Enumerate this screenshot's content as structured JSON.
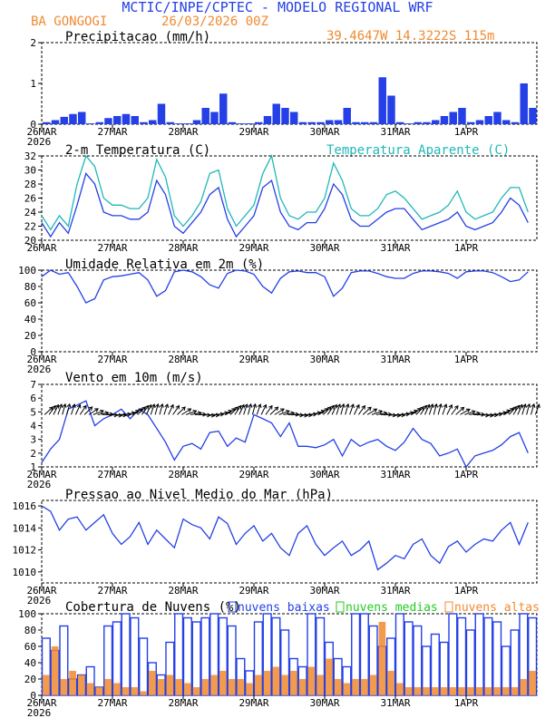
{
  "header": {
    "title": "MCTIC/INPE/CPTEC - MODELO REGIONAL WRF",
    "location": "BA GONGOGI",
    "run": "26/03/2026 00Z",
    "coords": "39.4647W 14.3222S 115m"
  },
  "colors": {
    "blue": "#2440e6",
    "orange": "#f08a30",
    "cyan": "#20b8b8",
    "green": "#22cc22",
    "black": "#000000"
  },
  "x_axis": {
    "labels": [
      "26MAR",
      "27MAR",
      "28MAR",
      "29MAR",
      "30MAR",
      "31MAR",
      "1APR"
    ],
    "year": "2026"
  },
  "chart_data": [
    {
      "id": "precip",
      "type": "bar",
      "title": "Precipitacao (mm/h)",
      "ylim": [
        0,
        2
      ],
      "yticks": [
        "0",
        "1",
        "2"
      ],
      "x_unit": "hours since 26MAR 00Z (3-hourly)",
      "x": [
        0,
        3,
        6,
        9,
        12,
        15,
        18,
        21,
        24,
        27,
        30,
        33,
        36,
        39,
        42,
        45,
        48,
        51,
        54,
        57,
        60,
        63,
        66,
        69,
        72,
        75,
        78,
        81,
        84,
        87,
        90,
        93,
        96,
        99,
        102,
        105,
        108,
        111,
        114,
        117,
        120,
        123,
        126,
        129,
        132,
        135,
        138,
        141,
        144,
        147,
        150,
        153,
        156,
        159,
        162,
        165
      ],
      "series": [
        {
          "name": "Precipitacao",
          "color": "blue",
          "values": [
            0.05,
            0.1,
            0.18,
            0.25,
            0.3,
            0.02,
            0.05,
            0.15,
            0.2,
            0.25,
            0.2,
            0.05,
            0.1,
            0.5,
            0.05,
            0.02,
            0.02,
            0.1,
            0.4,
            0.3,
            0.75,
            0.05,
            0.02,
            0.02,
            0.05,
            0.2,
            0.5,
            0.4,
            0.3,
            0.05,
            0.05,
            0.05,
            0.1,
            0.1,
            0.4,
            0.05,
            0.05,
            0.05,
            1.15,
            0.7,
            0.05,
            0.02,
            0.05,
            0.05,
            0.1,
            0.2,
            0.3,
            0.4,
            0.05,
            0.1,
            0.2,
            0.3,
            0.1,
            0.05,
            1.0,
            0.4
          ]
        }
      ]
    },
    {
      "id": "temp",
      "type": "line",
      "title": "2-m Temperatura (C)",
      "title2": "Temperatura Aparente (C)",
      "ylim": [
        20,
        32
      ],
      "yticks": [
        "20",
        "22",
        "24",
        "26",
        "28",
        "30",
        "32"
      ],
      "x": [
        0,
        3,
        6,
        9,
        12,
        15,
        18,
        21,
        24,
        27,
        30,
        33,
        36,
        39,
        42,
        45,
        48,
        51,
        54,
        57,
        60,
        63,
        66,
        69,
        72,
        75,
        78,
        81,
        84,
        87,
        90,
        93,
        96,
        99,
        102,
        105,
        108,
        111,
        114,
        117,
        120,
        123,
        126,
        129,
        132,
        135,
        138,
        141,
        144,
        147,
        150,
        153,
        156,
        159,
        162,
        165
      ],
      "series": [
        {
          "name": "2-m Temperatura",
          "color": "blue",
          "values": [
            22.5,
            20.5,
            22.5,
            21,
            25,
            29.5,
            28,
            24,
            23.5,
            23.5,
            23,
            23,
            24,
            28.5,
            26.5,
            22,
            21,
            22.5,
            24,
            26.5,
            27.5,
            23,
            20.5,
            22,
            23.5,
            27.5,
            28.5,
            24,
            22,
            21.5,
            22.5,
            22.5,
            24.5,
            28,
            26.5,
            23,
            22,
            22,
            23,
            24,
            24.5,
            24.5,
            23,
            21.5,
            22,
            22.5,
            23,
            24,
            22,
            21.5,
            22,
            22.5,
            24,
            26,
            25,
            22.5
          ]
        },
        {
          "name": "Temperatura Aparente",
          "color": "cyan",
          "values": [
            23.5,
            21.5,
            23.5,
            22,
            28,
            32,
            30.5,
            26,
            25,
            25,
            24.5,
            24.5,
            26,
            31.5,
            29,
            23.5,
            22,
            23.5,
            25.5,
            29.5,
            30,
            24.5,
            22,
            23.5,
            25,
            29.5,
            32,
            26,
            23.5,
            23,
            24,
            24,
            26,
            31,
            28.5,
            24.5,
            23.5,
            23.5,
            24.5,
            26.5,
            27,
            26,
            24.5,
            23,
            23.5,
            24,
            25,
            27,
            24,
            23,
            23.5,
            24,
            26,
            27.5,
            27.5,
            24
          ]
        }
      ]
    },
    {
      "id": "rh",
      "type": "line",
      "title": "Umidade Relativa em 2m (%)",
      "ylim": [
        0,
        100
      ],
      "yticks": [
        "0",
        "20",
        "40",
        "60",
        "80",
        "100"
      ],
      "x": [
        0,
        3,
        6,
        9,
        12,
        15,
        18,
        21,
        24,
        27,
        30,
        33,
        36,
        39,
        42,
        45,
        48,
        51,
        54,
        57,
        60,
        63,
        66,
        69,
        72,
        75,
        78,
        81,
        84,
        87,
        90,
        93,
        96,
        99,
        102,
        105,
        108,
        111,
        114,
        117,
        120,
        123,
        126,
        129,
        132,
        135,
        138,
        141,
        144,
        147,
        150,
        153,
        156,
        159,
        162,
        165
      ],
      "series": [
        {
          "name": "Umidade Relativa",
          "color": "blue",
          "values": [
            92,
            100,
            95,
            97,
            80,
            60,
            65,
            88,
            92,
            93,
            95,
            97,
            88,
            68,
            75,
            98,
            100,
            98,
            92,
            82,
            78,
            96,
            100,
            99,
            95,
            80,
            72,
            90,
            98,
            99,
            97,
            97,
            92,
            68,
            78,
            97,
            99,
            99,
            96,
            92,
            90,
            90,
            96,
            99,
            99,
            98,
            96,
            90,
            98,
            99,
            99,
            97,
            92,
            86,
            88,
            98
          ]
        }
      ]
    },
    {
      "id": "wind",
      "type": "line",
      "title": "Vento em 10m (m/s)",
      "ylim": [
        1,
        7
      ],
      "yticks": [
        "1",
        "2",
        "3",
        "4",
        "5",
        "6",
        "7"
      ],
      "x": [
        0,
        3,
        6,
        9,
        12,
        15,
        18,
        21,
        24,
        27,
        30,
        33,
        36,
        39,
        42,
        45,
        48,
        51,
        54,
        57,
        60,
        63,
        66,
        69,
        72,
        75,
        78,
        81,
        84,
        87,
        90,
        93,
        96,
        99,
        102,
        105,
        108,
        111,
        114,
        117,
        120,
        123,
        126,
        129,
        132,
        135,
        138,
        141,
        144,
        147,
        150,
        153,
        156,
        159,
        162,
        165
      ],
      "series": [
        {
          "name": "Vento em 10m",
          "color": "blue",
          "values": [
            1.3,
            2.3,
            3,
            5.2,
            5.5,
            5.8,
            4,
            4.5,
            4.8,
            5.2,
            4.5,
            5.2,
            4.8,
            3.8,
            2.8,
            1.5,
            2.5,
            2.7,
            2.3,
            3.5,
            3.6,
            2.5,
            3.1,
            2.8,
            4.8,
            4.5,
            4.2,
            3.2,
            4.2,
            2.5,
            2.5,
            2.4,
            2.6,
            3,
            1.8,
            3,
            2.5,
            2.8,
            3,
            2.5,
            2.2,
            2.8,
            3.8,
            3,
            2.7,
            1.8,
            2,
            2.3,
            1,
            1.8,
            2,
            2.2,
            2.6,
            3.2,
            3.5,
            2.0
          ]
        }
      ],
      "vectors": {
        "baseline": 4.8,
        "interval_hours": 3
      }
    },
    {
      "id": "pressure",
      "type": "line",
      "title": "Pressao ao Nivel Medio do Mar (hPa)",
      "ylim": [
        1009,
        1016.5
      ],
      "yticks": [
        "1010",
        "1012",
        "1014",
        "1016"
      ],
      "x": [
        0,
        3,
        6,
        9,
        12,
        15,
        18,
        21,
        24,
        27,
        30,
        33,
        36,
        39,
        42,
        45,
        48,
        51,
        54,
        57,
        60,
        63,
        66,
        69,
        72,
        75,
        78,
        81,
        84,
        87,
        90,
        93,
        96,
        99,
        102,
        105,
        108,
        111,
        114,
        117,
        120,
        123,
        126,
        129,
        132,
        135,
        138,
        141,
        144,
        147,
        150,
        153,
        156,
        159,
        162,
        165
      ],
      "series": [
        {
          "name": "Pressao",
          "color": "blue",
          "values": [
            1016,
            1015.5,
            1013.8,
            1014.8,
            1015,
            1013.8,
            1014.5,
            1015.2,
            1013.5,
            1012.5,
            1013.2,
            1014.5,
            1012.5,
            1013.8,
            1013,
            1012.2,
            1014.8,
            1014.3,
            1014,
            1013,
            1015,
            1014.4,
            1012.5,
            1013.5,
            1014.2,
            1012.8,
            1013.5,
            1012.2,
            1011.5,
            1013.5,
            1014.2,
            1012.5,
            1011.5,
            1012.2,
            1012.8,
            1011.5,
            1012,
            1012.8,
            1010.2,
            1010.8,
            1011.5,
            1011.2,
            1012.5,
            1013,
            1011.5,
            1010.8,
            1012.3,
            1012.8,
            1011.8,
            1012.5,
            1013,
            1012.8,
            1013.8,
            1014.5,
            1012.5,
            1014.5
          ]
        }
      ]
    },
    {
      "id": "clouds",
      "type": "bar",
      "title": "Cobertura de Nuvens (%)",
      "ylim": [
        0,
        100
      ],
      "yticks": [
        "0",
        "20",
        "40",
        "60",
        "80",
        "100"
      ],
      "x": [
        0,
        3,
        6,
        9,
        12,
        15,
        18,
        21,
        24,
        27,
        30,
        33,
        36,
        39,
        42,
        45,
        48,
        51,
        54,
        57,
        60,
        63,
        66,
        69,
        72,
        75,
        78,
        81,
        84,
        87,
        90,
        93,
        96,
        99,
        102,
        105,
        108,
        111,
        114,
        117,
        120,
        123,
        126,
        129,
        132,
        135,
        138,
        141,
        144,
        147,
        150,
        153,
        156,
        159,
        162,
        165
      ],
      "legend": [
        "nuvens baixas",
        "nuvens medias",
        "nuvens altas"
      ],
      "series": [
        {
          "name": "nuvens baixas",
          "color": "blue",
          "values": [
            70,
            55,
            85,
            20,
            25,
            35,
            10,
            85,
            90,
            100,
            95,
            70,
            40,
            25,
            65,
            100,
            95,
            90,
            95,
            100,
            95,
            85,
            45,
            30,
            90,
            100,
            95,
            80,
            45,
            35,
            100,
            95,
            65,
            45,
            35,
            100,
            100,
            85,
            60,
            70,
            100,
            90,
            85,
            60,
            75,
            65,
            100,
            95,
            80,
            100,
            95,
            90,
            60,
            80,
            100,
            95
          ]
        },
        {
          "name": "nuvens medias",
          "color": "green",
          "values": [
            0,
            0,
            0,
            0,
            0,
            0,
            0,
            0,
            0,
            0,
            0,
            0,
            0,
            0,
            0,
            0,
            0,
            0,
            0,
            0,
            0,
            0,
            0,
            0,
            0,
            0,
            0,
            0,
            0,
            0,
            0,
            0,
            0,
            0,
            0,
            0,
            0,
            0,
            0,
            0,
            0,
            0,
            0,
            0,
            0,
            0,
            0,
            0,
            0,
            0,
            0,
            0,
            0,
            0,
            0,
            0
          ]
        },
        {
          "name": "nuvens altas",
          "color": "orange",
          "values": [
            25,
            60,
            20,
            30,
            25,
            15,
            10,
            20,
            15,
            10,
            10,
            5,
            30,
            20,
            25,
            20,
            15,
            10,
            20,
            25,
            30,
            20,
            20,
            15,
            25,
            30,
            35,
            25,
            30,
            20,
            35,
            25,
            45,
            20,
            15,
            20,
            20,
            25,
            90,
            30,
            15,
            10,
            10,
            10,
            10,
            10,
            10,
            10,
            10,
            10,
            10,
            10,
            10,
            10,
            20,
            30
          ]
        }
      ]
    }
  ]
}
